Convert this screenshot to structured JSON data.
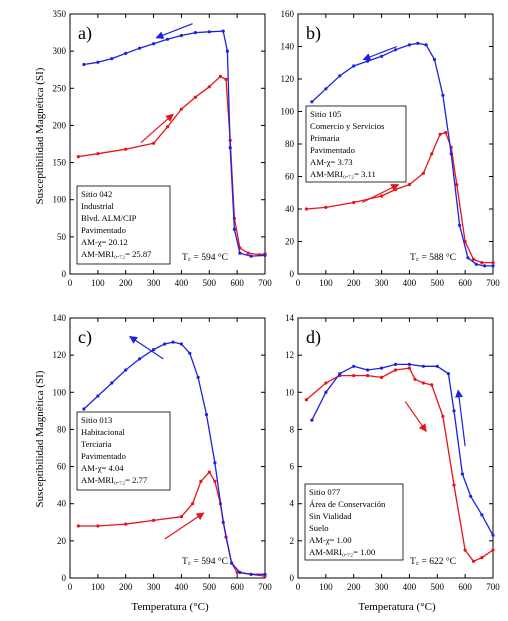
{
  "figure": {
    "ylabel": "Susceptibilidad Magnética (SI)",
    "xlabel": "Temperatura (°C)"
  },
  "colors": {
    "heating": "#e8141a",
    "cooling": "#1b23e0",
    "text": "#000000"
  },
  "chart_data": [
    {
      "type": "line",
      "panel_label": "a)",
      "xlim": [
        0,
        700
      ],
      "ylim": [
        0,
        350
      ],
      "xticks": [
        0,
        100,
        200,
        300,
        400,
        500,
        600,
        700
      ],
      "yticks": [
        0,
        50,
        100,
        150,
        200,
        250,
        300,
        350
      ],
      "info": [
        "Sitio 042",
        "Industrial",
        "Blvd. ALM/CIP",
        "Pavimentado",
        "AM-χ= 20.12",
        "AM-MRI₀.₇₂= 25.87"
      ],
      "curie": "T꜀ = 594 °C",
      "series": [
        {
          "color": "#e8141a",
          "x": [
            30,
            100,
            200,
            300,
            350,
            400,
            450,
            500,
            540,
            560,
            575,
            590,
            610,
            640,
            680,
            700
          ],
          "y": [
            158,
            162,
            168,
            176,
            198,
            222,
            238,
            252,
            266,
            262,
            180,
            75,
            35,
            28,
            26,
            27
          ]
        },
        {
          "color": "#1b23e0",
          "x": [
            50,
            100,
            150,
            200,
            250,
            300,
            350,
            400,
            450,
            500,
            550,
            565,
            575,
            590,
            610,
            650,
            700
          ],
          "y": [
            282,
            285,
            290,
            297,
            304,
            310,
            316,
            321,
            325,
            326,
            327,
            300,
            170,
            60,
            28,
            24,
            25
          ]
        }
      ],
      "arrows": [
        {
          "color": "#e8141a",
          "from": [
            255,
            177
          ],
          "to": [
            370,
            215
          ]
        },
        {
          "color": "#1b23e0",
          "from": [
            440,
            337
          ],
          "to": [
            310,
            318
          ]
        }
      ]
    },
    {
      "type": "line",
      "panel_label": "b)",
      "xlim": [
        0,
        700
      ],
      "ylim": [
        0,
        160
      ],
      "xticks": [
        0,
        100,
        200,
        300,
        400,
        500,
        600,
        700
      ],
      "yticks": [
        0,
        20,
        40,
        60,
        80,
        100,
        120,
        140,
        160
      ],
      "info": [
        "Sitio 105",
        "Comercio y Servicios",
        "Primaria",
        "Pavimentado",
        "AM-χ= 3.73",
        "AM-MRI₀.₇₂= 3.11"
      ],
      "curie": "T꜀ = 588 °C",
      "series": [
        {
          "color": "#e8141a",
          "x": [
            30,
            100,
            200,
            300,
            350,
            400,
            450,
            480,
            510,
            530,
            550,
            570,
            600,
            630,
            660,
            700
          ],
          "y": [
            40,
            41,
            44,
            48,
            52,
            55,
            62,
            74,
            86,
            87,
            78,
            55,
            20,
            9,
            7,
            7
          ]
        },
        {
          "color": "#1b23e0",
          "x": [
            50,
            100,
            150,
            200,
            250,
            300,
            350,
            400,
            430,
            460,
            490,
            520,
            550,
            580,
            610,
            640,
            670,
            700
          ],
          "y": [
            106,
            114,
            122,
            128,
            131,
            134,
            138,
            141,
            142,
            141,
            132,
            110,
            74,
            30,
            10,
            6,
            5,
            5
          ]
        }
      ],
      "arrows": [
        {
          "color": "#e8141a",
          "from": [
            230,
            44
          ],
          "to": [
            360,
            55
          ]
        },
        {
          "color": "#1b23e0",
          "from": [
            355,
            140
          ],
          "to": [
            235,
            132
          ]
        }
      ]
    },
    {
      "type": "line",
      "panel_label": "c)",
      "xlim": [
        0,
        700
      ],
      "ylim": [
        0,
        140
      ],
      "xticks": [
        0,
        100,
        200,
        300,
        400,
        500,
        600,
        700
      ],
      "yticks": [
        0,
        20,
        40,
        60,
        80,
        100,
        120,
        140
      ],
      "info": [
        "Sitio 013",
        "Habitacional",
        "Terciaria",
        "Pavimentado",
        "AM-χ= 4.04",
        "AM-MRI₀.₇₂= 2.77"
      ],
      "curie": "T꜀ = 594 °C",
      "series": [
        {
          "color": "#e8141a",
          "x": [
            30,
            100,
            200,
            300,
            400,
            440,
            470,
            500,
            520,
            540,
            560,
            580,
            600,
            650,
            700
          ],
          "y": [
            28,
            28,
            29,
            31,
            33,
            40,
            52,
            57,
            52,
            40,
            22,
            8,
            3,
            2,
            1
          ]
        },
        {
          "color": "#1b23e0",
          "x": [
            50,
            100,
            150,
            200,
            250,
            300,
            340,
            370,
            400,
            430,
            460,
            490,
            520,
            550,
            580,
            610,
            650,
            700
          ],
          "y": [
            91,
            98,
            105,
            112,
            118,
            123,
            126,
            127,
            126,
            121,
            108,
            88,
            62,
            30,
            8,
            3,
            2,
            2
          ]
        }
      ],
      "arrows": [
        {
          "color": "#e8141a",
          "from": [
            340,
            21
          ],
          "to": [
            480,
            35
          ]
        },
        {
          "color": "#1b23e0",
          "from": [
            335,
            118
          ],
          "to": [
            215,
            130
          ]
        }
      ]
    },
    {
      "type": "line",
      "panel_label": "d)",
      "xlim": [
        0,
        700
      ],
      "ylim": [
        0,
        14
      ],
      "xticks": [
        0,
        100,
        200,
        300,
        400,
        500,
        600,
        700
      ],
      "yticks": [
        0,
        2,
        4,
        6,
        8,
        10,
        12,
        14
      ],
      "info": [
        "Sitio 077",
        "Área de Conservación",
        "Sin Vialidad",
        "Suelo",
        "AM-χ= 1.00",
        "AM-MRI₀.₇₂= 1.00"
      ],
      "curie": "T꜀ = 622 °C",
      "series": [
        {
          "color": "#e8141a",
          "x": [
            30,
            100,
            150,
            200,
            250,
            300,
            350,
            400,
            420,
            450,
            480,
            520,
            560,
            600,
            630,
            660,
            700
          ],
          "y": [
            9.6,
            10.5,
            10.9,
            10.9,
            10.9,
            10.8,
            11.2,
            11.3,
            10.7,
            10.5,
            10.4,
            8.7,
            5.0,
            1.5,
            0.9,
            1.1,
            1.5
          ]
        },
        {
          "color": "#1b23e0",
          "x": [
            50,
            100,
            150,
            200,
            250,
            300,
            350,
            400,
            450,
            500,
            540,
            560,
            590,
            620,
            660,
            700
          ],
          "y": [
            8.5,
            10.0,
            11.0,
            11.4,
            11.2,
            11.3,
            11.5,
            11.5,
            11.4,
            11.4,
            11.0,
            9.0,
            5.6,
            4.4,
            3.4,
            2.3
          ]
        }
      ],
      "arrows": [
        {
          "color": "#e8141a",
          "from": [
            385,
            9.5
          ],
          "to": [
            460,
            7.9
          ]
        },
        {
          "color": "#1b23e0",
          "from": [
            600,
            7.1
          ],
          "to": [
            575,
            10.1
          ]
        }
      ]
    }
  ]
}
